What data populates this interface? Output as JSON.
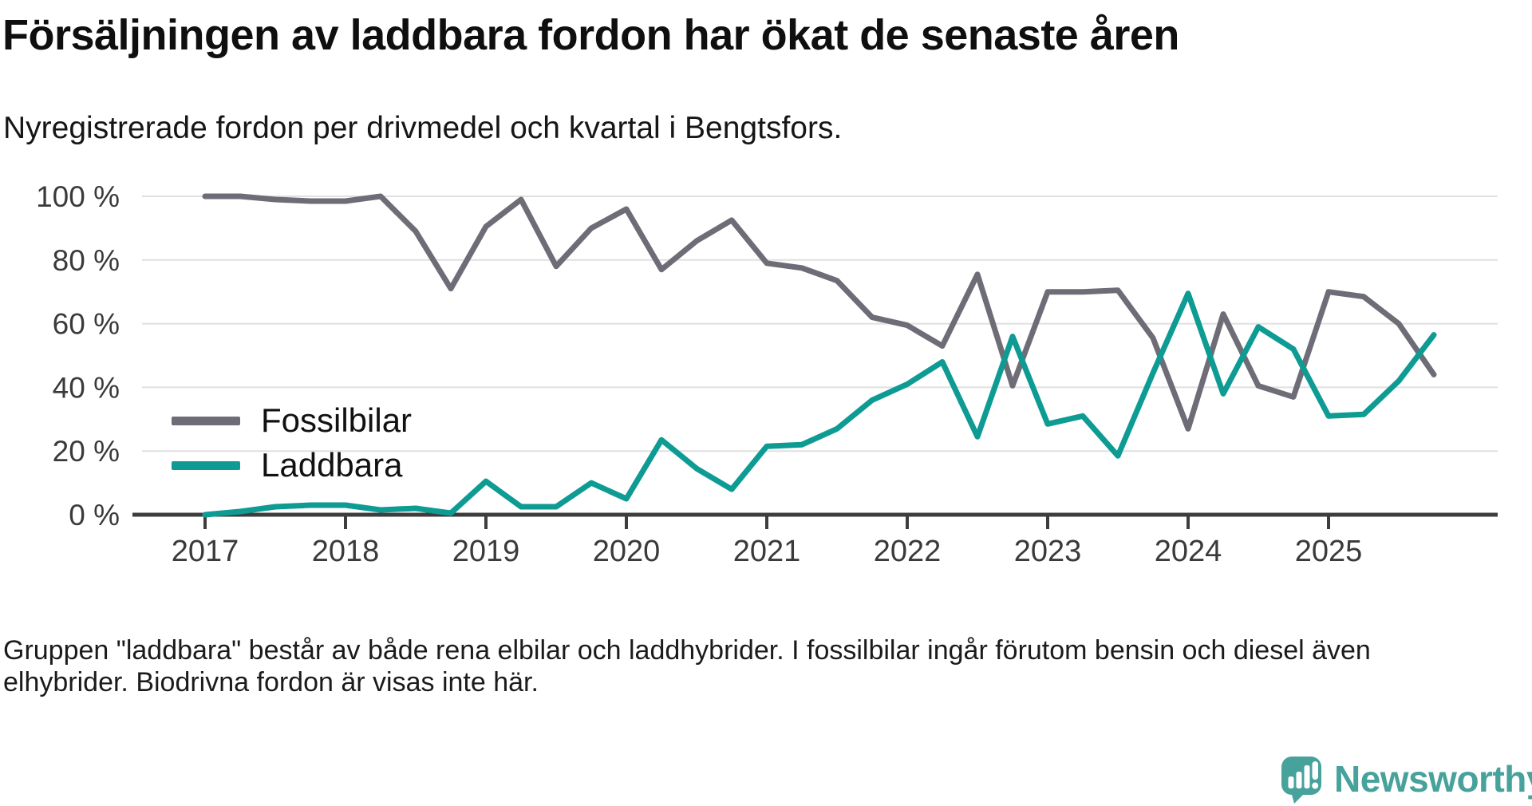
{
  "header": {
    "title": "Försäljningen av laddbara fordon har ökat de senaste åren",
    "subtitle": "Nyregistrerade fordon per drivmedel och kvartal i Bengtsfors."
  },
  "legend": {
    "items": [
      {
        "label": "Fossilbilar",
        "color": "#6e6d77"
      },
      {
        "label": "Laddbara",
        "color": "#0d9b93"
      }
    ]
  },
  "note": {
    "line1": "Gruppen \"laddbara\" består av både rena elbilar och laddhybrider. I fossilbilar ingår förutom bensin och diesel även",
    "line2": "elhybrider. Biodrivna fordon är visas inte här."
  },
  "branding": {
    "name": "Newsworthy",
    "color": "#46a29b"
  },
  "chart_data": {
    "type": "line",
    "title": "Försäljningen av laddbara fordon har ökat de senaste åren",
    "subtitle": "Nyregistrerade fordon per drivmedel och kvartal i Bengtsfors.",
    "x_unit": "quarter",
    "categories": [
      "2017 Q1",
      "2017 Q2",
      "2017 Q3",
      "2017 Q4",
      "2018 Q1",
      "2018 Q2",
      "2018 Q3",
      "2018 Q4",
      "2019 Q1",
      "2019 Q2",
      "2019 Q3",
      "2019 Q4",
      "2020 Q1",
      "2020 Q2",
      "2020 Q3",
      "2020 Q4",
      "2021 Q1",
      "2021 Q2",
      "2021 Q3",
      "2021 Q4",
      "2022 Q1",
      "2022 Q2",
      "2022 Q3",
      "2022 Q4",
      "2023 Q1",
      "2023 Q2",
      "2023 Q3",
      "2023 Q4",
      "2024 Q1",
      "2024 Q2",
      "2024 Q3",
      "2024 Q4",
      "2025 Q1",
      "2025 Q2",
      "2025 Q3",
      "2025 Q4"
    ],
    "series": [
      {
        "name": "Fossilbilar",
        "color": "#6e6d77",
        "values": [
          100,
          100,
          99,
          98.5,
          98.5,
          100,
          89,
          71,
          90.5,
          99,
          78,
          90,
          96,
          77,
          86,
          92.5,
          79,
          77.5,
          73.5,
          62,
          59.5,
          53,
          75.5,
          40.5,
          70,
          70,
          70.5,
          55.5,
          27,
          63,
          40.5,
          37,
          70,
          68.5,
          60,
          44
        ]
      },
      {
        "name": "Laddbara",
        "color": "#0d9b93",
        "values": [
          0,
          1,
          2.5,
          3,
          3,
          1.5,
          2,
          0.5,
          10.5,
          2.5,
          2.5,
          10,
          5,
          23.5,
          14.5,
          8,
          21.5,
          22,
          27,
          36,
          41,
          48,
          24.5,
          56,
          28.5,
          31,
          18.5,
          44.5,
          69.5,
          38,
          59,
          52,
          31,
          31.5,
          42,
          56.5
        ]
      }
    ],
    "ylim": [
      0,
      100
    ],
    "yticks": [
      0,
      20,
      40,
      60,
      80,
      100
    ],
    "ytick_suffix": " %",
    "xticks": [
      "2017",
      "2018",
      "2019",
      "2020",
      "2021",
      "2022",
      "2023",
      "2024",
      "2025"
    ],
    "grid": "horizontal",
    "legend_position": "inside-left",
    "colors": {
      "gridline": "#e0e0e0",
      "axis": "#3d3d3d",
      "tick_label": "#3a3a3a"
    }
  }
}
